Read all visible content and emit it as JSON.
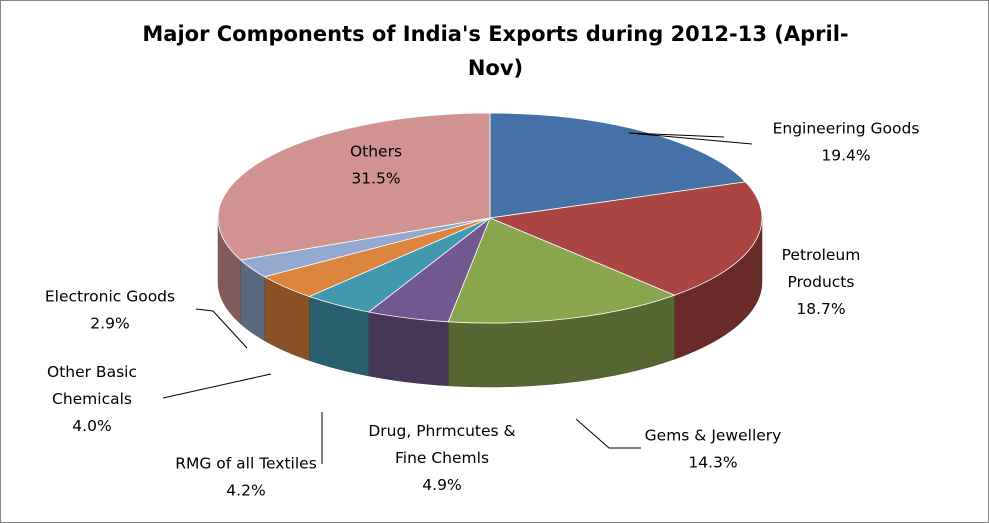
{
  "chart_data": {
    "type": "pie",
    "title_lines": [
      "Major Components of India's Exports during 2012-13 (April-",
      "Nov)"
    ],
    "slices": [
      {
        "name": "Engineering Goods",
        "label_lines": [
          "Engineering Goods"
        ],
        "value": 19.4,
        "value_label": "19.4%",
        "color": "#4472A6"
      },
      {
        "name": "Petroleum Products",
        "label_lines": [
          "Petroleum",
          "Products"
        ],
        "value": 18.7,
        "value_label": "18.7%",
        "color": "#AA4542"
      },
      {
        "name": "Gems & Jewellery",
        "label_lines": [
          "Gems & Jewellery"
        ],
        "value": 14.3,
        "value_label": "14.3%",
        "color": "#89A54E"
      },
      {
        "name": "Drug, Phrmcutes & Fine Chemls",
        "label_lines": [
          "Drug, Phrmcutes &",
          "Fine Chemls"
        ],
        "value": 4.9,
        "value_label": "4.9%",
        "color": "#71588F"
      },
      {
        "name": "RMG of all Textiles",
        "label_lines": [
          "RMG of all Textiles"
        ],
        "value": 4.2,
        "value_label": "4.2%",
        "color": "#4198AF"
      },
      {
        "name": "Other Basic Chemicals",
        "label_lines": [
          "Other Basic",
          "Chemicals"
        ],
        "value": 4.0,
        "value_label": "4.0%",
        "color": "#DB843D"
      },
      {
        "name": "Electronic Goods",
        "label_lines": [
          "Electronic Goods"
        ],
        "value": 2.9,
        "value_label": "2.9%",
        "color": "#93A9CF"
      },
      {
        "name": "Others",
        "label_lines": [
          "Others"
        ],
        "value": 31.5,
        "value_label": "31.5%",
        "color": "#D09392"
      }
    ],
    "legend": "none",
    "style": "3d-pie"
  }
}
